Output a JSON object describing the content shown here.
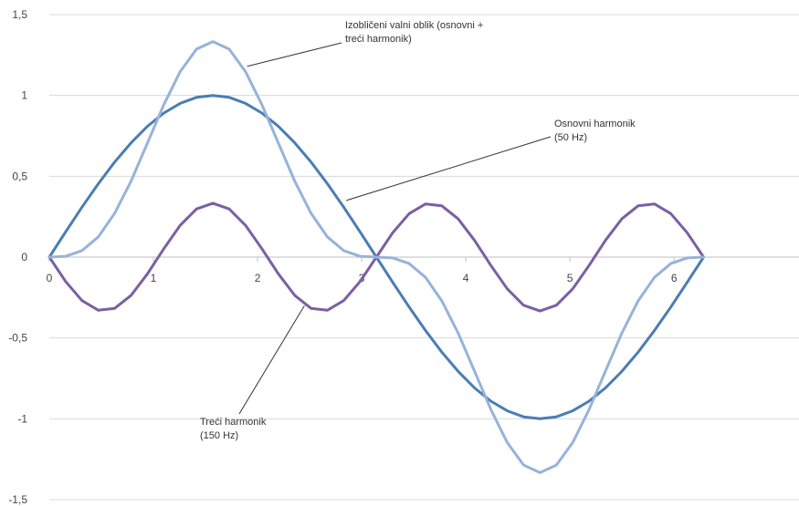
{
  "chart_data": {
    "type": "line",
    "title": "",
    "xlabel": "",
    "ylabel": "",
    "xlim": [
      0,
      7.2
    ],
    "ylim": [
      -1.5,
      1.5
    ],
    "x_ticks": [
      0,
      1,
      2,
      3,
      4,
      5,
      6
    ],
    "x_tick_labels": [
      "0",
      "1",
      "2",
      "3",
      "4",
      "5",
      "6"
    ],
    "y_ticks": [
      1.5,
      1,
      0.5,
      0,
      -0.5,
      -1,
      -1.5
    ],
    "y_tick_labels": [
      "1,5",
      "1",
      "0,5",
      "0",
      "-0,5",
      "-1",
      "-1,5"
    ],
    "grid": "horizontal",
    "legend": "none",
    "x": [
      0,
      0.1571,
      0.3142,
      0.4712,
      0.6283,
      0.7854,
      0.9425,
      1.0996,
      1.2566,
      1.4137,
      1.5708,
      1.7279,
      1.885,
      2.042,
      2.1991,
      2.3562,
      2.5133,
      2.6704,
      2.8274,
      2.9845,
      3.1416,
      3.2987,
      3.4558,
      3.6128,
      3.7699,
      3.927,
      4.0841,
      4.2412,
      4.3982,
      4.5553,
      4.7124,
      4.8695,
      5.0265,
      5.1836,
      5.3407,
      5.4978,
      5.6549,
      5.8119,
      5.969,
      6.1261,
      6.2832
    ],
    "series": [
      {
        "color": "#4a7db3",
        "values": [
          0,
          0.156,
          0.309,
          0.454,
          0.588,
          0.707,
          0.809,
          0.891,
          0.951,
          0.988,
          1,
          0.988,
          0.951,
          0.891,
          0.809,
          0.707,
          0.588,
          0.454,
          0.309,
          0.156,
          0,
          -0.156,
          -0.309,
          -0.454,
          -0.588,
          -0.707,
          -0.809,
          -0.891,
          -0.951,
          -0.988,
          -1,
          -0.988,
          -0.951,
          -0.891,
          -0.809,
          -0.707,
          -0.588,
          -0.454,
          -0.309,
          -0.156,
          0
        ]
      },
      {
        "color": "#7b5fa3",
        "values": [
          0,
          -0.151,
          -0.269,
          -0.329,
          -0.317,
          -0.236,
          -0.103,
          0.052,
          0.196,
          0.298,
          0.333,
          0.298,
          0.196,
          0.052,
          -0.103,
          -0.236,
          -0.317,
          -0.329,
          -0.269,
          -0.151,
          0,
          0.151,
          0.269,
          0.329,
          0.317,
          0.236,
          0.103,
          -0.052,
          -0.196,
          -0.298,
          -0.333,
          -0.298,
          -0.196,
          -0.052,
          0.103,
          0.236,
          0.317,
          0.329,
          0.269,
          0.151,
          0
        ]
      },
      {
        "color": "#96b3d9",
        "values": [
          0,
          0.005,
          0.04,
          0.125,
          0.271,
          0.471,
          0.706,
          0.943,
          1.147,
          1.286,
          1.333,
          1.286,
          1.147,
          0.943,
          0.706,
          0.471,
          0.271,
          0.125,
          0.04,
          0.005,
          0,
          -0.005,
          -0.04,
          -0.125,
          -0.271,
          -0.471,
          -0.706,
          -0.943,
          -1.147,
          -1.286,
          -1.333,
          -1.286,
          -1.147,
          -0.943,
          -0.706,
          -0.471,
          -0.271,
          -0.125,
          -0.04,
          -0.005,
          0
        ]
      }
    ],
    "annotations": [
      {
        "lines": [
          "Izobličeni valni oblik (osnovni +",
          "treći harmonik)"
        ],
        "series_index": 2
      },
      {
        "lines": [
          "Osnovni harmonik",
          "(50 Hz)"
        ],
        "series_index": 0
      },
      {
        "lines": [
          "Treći harmonik",
          "(150 Hz)"
        ],
        "series_index": 1
      }
    ]
  }
}
